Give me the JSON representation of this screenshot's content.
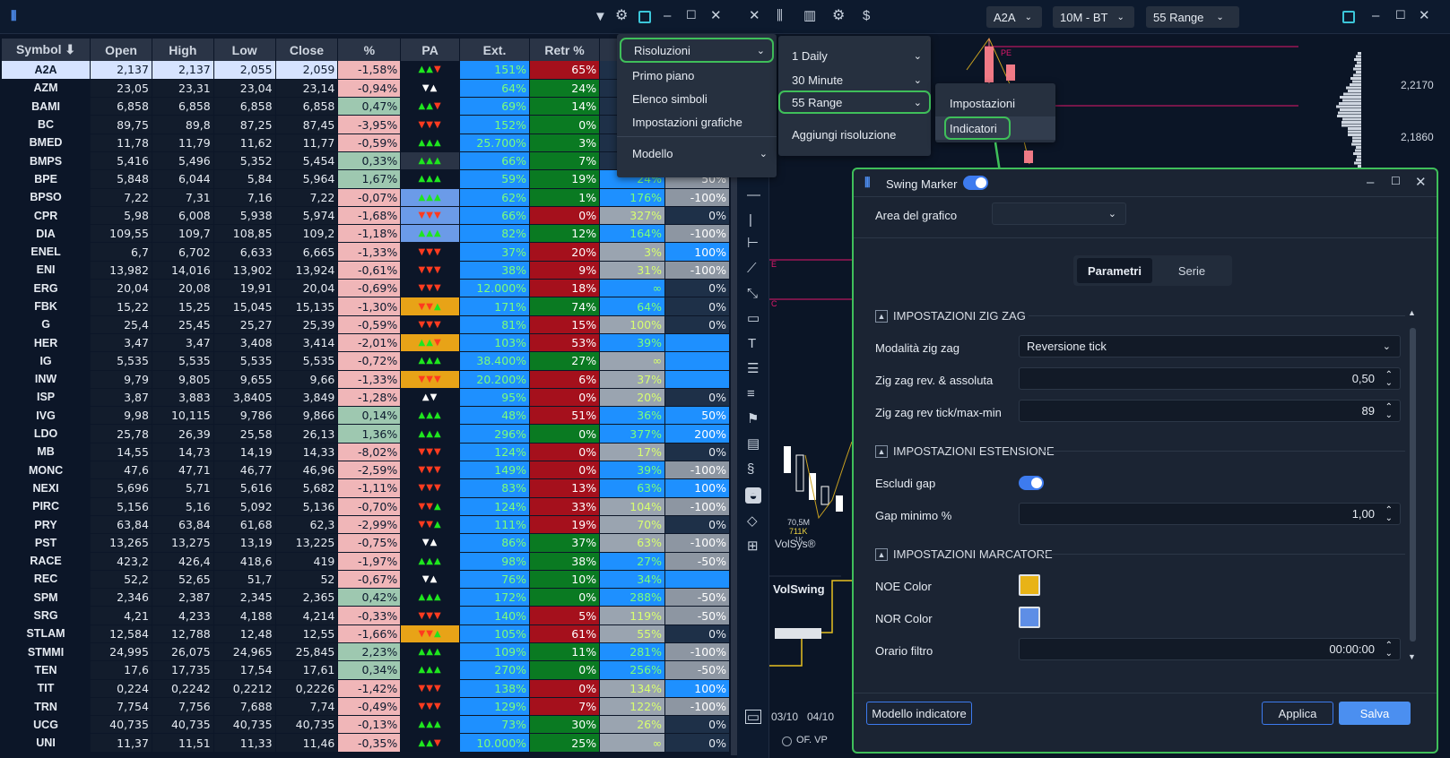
{
  "table": {
    "headers": [
      "Symbol ⬇",
      "Open",
      "High",
      "Low",
      "Close",
      "%",
      "PA",
      "Ext.",
      "Retr %",
      "",
      ""
    ],
    "rows": [
      {
        "sym": "A2A",
        "open": "2,137",
        "high": "2,137",
        "low": "2,055",
        "close": "2,059",
        "pct": "-1,58%",
        "pa": "▲▲▼",
        "pac": [
          "up",
          "up",
          "up"
        ],
        "ext": "151%",
        "retr": "65%",
        "retc": "retr",
        "c9": "",
        "c9c": "",
        "c10": "",
        "c10c": ""
      },
      {
        "sym": "AZM",
        "open": "23,05",
        "high": "23,31",
        "low": "23,04",
        "close": "23,14",
        "pct": "-0,94%",
        "pa": "▼▲",
        "pac": [
          "wh",
          "wh"
        ],
        "ext": "64%",
        "retr": "24%",
        "retc": "retg",
        "c9": "",
        "c9c": "",
        "c10": "",
        "c10c": ""
      },
      {
        "sym": "BAMI",
        "open": "6,858",
        "high": "6,858",
        "low": "6,858",
        "close": "6,858",
        "pct": "0,47%",
        "pa": "▲▲▼",
        "pac": [
          "up",
          "up",
          "up"
        ],
        "ext": "69%",
        "retr": "14%",
        "retc": "retg",
        "c9": "",
        "c9c": "",
        "c10": "",
        "c10c": ""
      },
      {
        "sym": "BC",
        "open": "89,75",
        "high": "89,8",
        "low": "87,25",
        "close": "87,45",
        "pct": "-3,95%",
        "pa": "▼▼▼",
        "pac": [
          "dn",
          "dn",
          "dn"
        ],
        "ext": "152%",
        "retr": "0%",
        "retc": "retg",
        "c9": "",
        "c9c": "",
        "c10": "",
        "c10c": ""
      },
      {
        "sym": "BMED",
        "open": "11,78",
        "high": "11,79",
        "low": "11,62",
        "close": "11,77",
        "pct": "-0,59%",
        "pa": "▲▲▲",
        "pac": [
          "up",
          "up",
          "up"
        ],
        "ext": "25.700%",
        "retr": "3%",
        "retc": "retg",
        "c9": "",
        "c9c": "",
        "c10": "",
        "c10c": ""
      },
      {
        "sym": "BMPS",
        "open": "5,416",
        "high": "5,496",
        "low": "5,352",
        "close": "5,454",
        "pct": "0,33%",
        "pa": "▲▲▲",
        "pac": [
          "up",
          "up",
          "up"
        ],
        "ext": "66%",
        "retr": "7%",
        "retc": "retg",
        "c9": "",
        "c9c": "",
        "c10": "",
        "c10c": ""
      },
      {
        "sym": "BPE",
        "open": "5,848",
        "high": "6,044",
        "low": "5,84",
        "close": "5,964",
        "pct": "1,67%",
        "pa": "▲▲▲",
        "pac": [
          "up",
          "up",
          "up"
        ],
        "ext": "59%",
        "retr": "19%",
        "retc": "retg",
        "c9": "24%",
        "c9c": "c9b",
        "c10": "50%",
        "c10c": "c10g"
      },
      {
        "sym": "BPSO",
        "open": "7,22",
        "high": "7,31",
        "low": "7,16",
        "close": "7,22",
        "pct": "-0,07%",
        "pa": "▲▲▲",
        "pac": [
          "up",
          "up",
          "up"
        ],
        "ext": "62%",
        "retr": "1%",
        "retc": "retg",
        "c9": "176%",
        "c9c": "c9b",
        "c10": "-100%",
        "c10c": "c10g"
      },
      {
        "sym": "CPR",
        "open": "5,98",
        "high": "6,008",
        "low": "5,938",
        "close": "5,974",
        "pct": "-1,68%",
        "pa": "▼▼▼",
        "pac": [
          "dn",
          "dn",
          "dn"
        ],
        "ext": "66%",
        "retr": "0%",
        "retc": "retr",
        "c9": "327%",
        "c9c": "c9g",
        "c10": "0%",
        "c10c": "c10d"
      },
      {
        "sym": "DIA",
        "open": "109,55",
        "high": "109,7",
        "low": "108,85",
        "close": "109,2",
        "pct": "-1,18%",
        "pa": "▲▲▲",
        "pac": [
          "up",
          "up",
          "up"
        ],
        "ext": "82%",
        "retr": "12%",
        "retc": "retg",
        "c9": "164%",
        "c9c": "c9b",
        "c10": "-100%",
        "c10c": "c10g"
      },
      {
        "sym": "ENEL",
        "open": "6,7",
        "high": "6,702",
        "low": "6,633",
        "close": "6,665",
        "pct": "-1,33%",
        "pa": "▼▼▼",
        "pac": [
          "dn",
          "dn",
          "dn"
        ],
        "ext": "37%",
        "retr": "20%",
        "retc": "retr",
        "c9": "3%",
        "c9c": "c9g",
        "c10": "100%",
        "c10c": "c10b"
      },
      {
        "sym": "ENI",
        "open": "13,982",
        "high": "14,016",
        "low": "13,902",
        "close": "13,924",
        "pct": "-0,61%",
        "pa": "▼▼▼",
        "pac": [
          "dn",
          "dn",
          "dn"
        ],
        "ext": "38%",
        "retr": "9%",
        "retc": "retr",
        "c9": "31%",
        "c9c": "c9g",
        "c10": "-100%",
        "c10c": "c10g"
      },
      {
        "sym": "ERG",
        "open": "20,04",
        "high": "20,08",
        "low": "19,91",
        "close": "20,04",
        "pct": "-0,69%",
        "pa": "▼▼▼",
        "pac": [
          "dn",
          "dn",
          "dn"
        ],
        "ext": "12.000%",
        "retr": "18%",
        "retc": "retr",
        "c9": "∞",
        "c9c": "c9b",
        "c10": "0%",
        "c10c": "c10d"
      },
      {
        "sym": "FBK",
        "open": "15,22",
        "high": "15,25",
        "low": "15,045",
        "close": "15,135",
        "pct": "-1,30%",
        "pa": "▼▼▲",
        "pac": [
          "dn",
          "dn",
          "dn"
        ],
        "ext": "171%",
        "retr": "74%",
        "retc": "retg",
        "c9": "64%",
        "c9c": "c9b",
        "c10": "0%",
        "c10c": "c10d"
      },
      {
        "sym": "G",
        "open": "25,4",
        "high": "25,45",
        "low": "25,27",
        "close": "25,39",
        "pct": "-0,59%",
        "pa": "▼▼▼",
        "pac": [
          "dn",
          "dn",
          "dn"
        ],
        "ext": "81%",
        "retr": "15%",
        "retc": "retr",
        "c9": "100%",
        "c9c": "c9g",
        "c10": "0%",
        "c10c": "c10d"
      },
      {
        "sym": "HER",
        "open": "3,47",
        "high": "3,47",
        "low": "3,408",
        "close": "3,414",
        "pct": "-2,01%",
        "pa": "▲▲▼",
        "pac": [
          "up",
          "up",
          "up"
        ],
        "ext": "103%",
        "retr": "53%",
        "retc": "retr",
        "c9": "39%",
        "c9c": "c9b",
        "c10": "",
        "c10c": "c10b"
      },
      {
        "sym": "IG",
        "open": "5,535",
        "high": "5,535",
        "low": "5,535",
        "close": "5,535",
        "pct": "-0,72%",
        "pa": "▲▲▲",
        "pac": [
          "up",
          "up",
          "up"
        ],
        "ext": "38.400%",
        "retr": "27%",
        "retc": "retg",
        "c9": "∞",
        "c9c": "c9g",
        "c10": "",
        "c10c": "c10b"
      },
      {
        "sym": "INW",
        "open": "9,79",
        "high": "9,805",
        "low": "9,655",
        "close": "9,66",
        "pct": "-1,33%",
        "pa": "▼▼▼",
        "pac": [
          "dn",
          "dn",
          "dn"
        ],
        "ext": "20.200%",
        "retr": "6%",
        "retc": "retr",
        "c9": "37%",
        "c9c": "c9g",
        "c10": "",
        "c10c": "c10b"
      },
      {
        "sym": "ISP",
        "open": "3,87",
        "high": "3,883",
        "low": "3,8405",
        "close": "3,849",
        "pct": "-1,28%",
        "pa": "▲▼",
        "pac": [
          "wh",
          "wh"
        ],
        "ext": "95%",
        "retr": "0%",
        "retc": "retr",
        "c9": "20%",
        "c9c": "c9g",
        "c10": "0%",
        "c10c": "c10d"
      },
      {
        "sym": "IVG",
        "open": "9,98",
        "high": "10,115",
        "low": "9,786",
        "close": "9,866",
        "pct": "0,14%",
        "pa": "▲▲▲",
        "pac": [
          "up",
          "up",
          "up"
        ],
        "ext": "48%",
        "retr": "51%",
        "retc": "retr",
        "c9": "36%",
        "c9c": "c9b",
        "c10": "50%",
        "c10c": "c10b"
      },
      {
        "sym": "LDO",
        "open": "25,78",
        "high": "26,39",
        "low": "25,58",
        "close": "26,13",
        "pct": "1,36%",
        "pa": "▲▲▲",
        "pac": [
          "up",
          "up",
          "up"
        ],
        "ext": "296%",
        "retr": "0%",
        "retc": "retg",
        "c9": "377%",
        "c9c": "c9b",
        "c10": "200%",
        "c10c": "c10b"
      },
      {
        "sym": "MB",
        "open": "14,55",
        "high": "14,73",
        "low": "14,19",
        "close": "14,33",
        "pct": "-8,02%",
        "pa": "▼▼▼",
        "pac": [
          "dn",
          "dn",
          "dn"
        ],
        "ext": "124%",
        "retr": "0%",
        "retc": "retr",
        "c9": "17%",
        "c9c": "c9g",
        "c10": "0%",
        "c10c": "c10d"
      },
      {
        "sym": "MONC",
        "open": "47,6",
        "high": "47,71",
        "low": "46,77",
        "close": "46,96",
        "pct": "-2,59%",
        "pa": "▼▼▼",
        "pac": [
          "dn",
          "dn",
          "dn"
        ],
        "ext": "149%",
        "retr": "0%",
        "retc": "retr",
        "c9": "39%",
        "c9c": "c9b",
        "c10": "-100%",
        "c10c": "c10g"
      },
      {
        "sym": "NEXI",
        "open": "5,696",
        "high": "5,71",
        "low": "5,616",
        "close": "5,682",
        "pct": "-1,11%",
        "pa": "▼▼▼",
        "pac": [
          "dn",
          "dn",
          "dn"
        ],
        "ext": "83%",
        "retr": "13%",
        "retc": "retr",
        "c9": "63%",
        "c9c": "c9b",
        "c10": "100%",
        "c10c": "c10b"
      },
      {
        "sym": "PIRC",
        "open": "5,156",
        "high": "5,16",
        "low": "5,092",
        "close": "5,136",
        "pct": "-0,70%",
        "pa": "▼▼▲",
        "pac": [
          "dn",
          "dn",
          "dn"
        ],
        "ext": "124%",
        "retr": "33%",
        "retc": "retr",
        "c9": "104%",
        "c9c": "c9g",
        "c10": "-100%",
        "c10c": "c10g"
      },
      {
        "sym": "PRY",
        "open": "63,84",
        "high": "63,84",
        "low": "61,68",
        "close": "62,3",
        "pct": "-2,99%",
        "pa": "▼▼▲",
        "pac": [
          "dn",
          "dn",
          "dn"
        ],
        "ext": "111%",
        "retr": "19%",
        "retc": "retr",
        "c9": "70%",
        "c9c": "c9g",
        "c10": "0%",
        "c10c": "c10d"
      },
      {
        "sym": "PST",
        "open": "13,265",
        "high": "13,275",
        "low": "13,19",
        "close": "13,225",
        "pct": "-0,75%",
        "pa": "▼▲",
        "pac": [
          "wh",
          "wh"
        ],
        "ext": "86%",
        "retr": "37%",
        "retc": "retg",
        "c9": "63%",
        "c9c": "c9g",
        "c10": "-100%",
        "c10c": "c10g"
      },
      {
        "sym": "RACE",
        "open": "423,2",
        "high": "426,4",
        "low": "418,6",
        "close": "419",
        "pct": "-1,97%",
        "pa": "▲▲▲",
        "pac": [
          "up",
          "up",
          "up"
        ],
        "ext": "98%",
        "retr": "38%",
        "retc": "retg",
        "c9": "27%",
        "c9c": "c9b",
        "c10": "-50%",
        "c10c": "c10g"
      },
      {
        "sym": "REC",
        "open": "52,2",
        "high": "52,65",
        "low": "51,7",
        "close": "52",
        "pct": "-0,67%",
        "pa": "▼▲",
        "pac": [
          "wh",
          "wh"
        ],
        "ext": "76%",
        "retr": "10%",
        "retc": "retg",
        "c9": "34%",
        "c9c": "c9b",
        "c10": "",
        "c10c": "c10b"
      },
      {
        "sym": "SPM",
        "open": "2,346",
        "high": "2,387",
        "low": "2,345",
        "close": "2,365",
        "pct": "0,42%",
        "pa": "▲▲▲",
        "pac": [
          "up",
          "up",
          "up"
        ],
        "ext": "172%",
        "retr": "0%",
        "retc": "retg",
        "c9": "288%",
        "c9c": "c9b",
        "c10": "-50%",
        "c10c": "c10g"
      },
      {
        "sym": "SRG",
        "open": "4,21",
        "high": "4,233",
        "low": "4,188",
        "close": "4,214",
        "pct": "-0,33%",
        "pa": "▼▼▼",
        "pac": [
          "dn",
          "dn",
          "dn"
        ],
        "ext": "140%",
        "retr": "5%",
        "retc": "retr",
        "c9": "119%",
        "c9c": "c9g",
        "c10": "-50%",
        "c10c": "c10g"
      },
      {
        "sym": "STLAM",
        "open": "12,584",
        "high": "12,788",
        "low": "12,48",
        "close": "12,55",
        "pct": "-1,66%",
        "pa": "▼▼▲",
        "pac": [
          "dn",
          "dn",
          "dn"
        ],
        "ext": "105%",
        "retr": "61%",
        "retc": "retr",
        "c9": "55%",
        "c9c": "c9g",
        "c10": "0%",
        "c10c": "c10d"
      },
      {
        "sym": "STMMI",
        "open": "24,995",
        "high": "26,075",
        "low": "24,965",
        "close": "25,845",
        "pct": "2,23%",
        "pa": "▲▲▲",
        "pac": [
          "up",
          "up",
          "up"
        ],
        "ext": "109%",
        "retr": "11%",
        "retc": "retg",
        "c9": "281%",
        "c9c": "c9b",
        "c10": "-100%",
        "c10c": "c10g"
      },
      {
        "sym": "TEN",
        "open": "17,6",
        "high": "17,735",
        "low": "17,54",
        "close": "17,61",
        "pct": "0,34%",
        "pa": "▲▲▲",
        "pac": [
          "up",
          "up",
          "up"
        ],
        "ext": "270%",
        "retr": "0%",
        "retc": "retg",
        "c9": "256%",
        "c9c": "c9b",
        "c10": "-50%",
        "c10c": "c10g"
      },
      {
        "sym": "TIT",
        "open": "0,224",
        "high": "0,2242",
        "low": "0,2212",
        "close": "0,2226",
        "pct": "-1,42%",
        "pa": "▼▼▼",
        "pac": [
          "dn",
          "dn",
          "dn"
        ],
        "ext": "138%",
        "retr": "0%",
        "retc": "retr",
        "c9": "134%",
        "c9c": "c9g",
        "c10": "100%",
        "c10c": "c10b"
      },
      {
        "sym": "TRN",
        "open": "7,754",
        "high": "7,756",
        "low": "7,688",
        "close": "7,74",
        "pct": "-0,49%",
        "pa": "▼▼▼",
        "pac": [
          "dn",
          "dn",
          "dn"
        ],
        "ext": "129%",
        "retr": "7%",
        "retc": "retr",
        "c9": "122%",
        "c9c": "c9g",
        "c10": "-100%",
        "c10c": "c10g"
      },
      {
        "sym": "UCG",
        "open": "40,735",
        "high": "40,735",
        "low": "40,735",
        "close": "40,735",
        "pct": "-0,13%",
        "pa": "▲▲▲",
        "pac": [
          "up",
          "up",
          "up"
        ],
        "ext": "73%",
        "retr": "30%",
        "retc": "retg",
        "c9": "26%",
        "c9c": "c9g",
        "c10": "0%",
        "c10c": "c10d"
      },
      {
        "sym": "UNI",
        "open": "11,37",
        "high": "11,51",
        "low": "11,33",
        "close": "11,46",
        "pct": "-0,35%",
        "pa": "▲▲▼",
        "pac": [
          "up",
          "up",
          "up"
        ],
        "ext": "10.000%",
        "retr": "25%",
        "retc": "retg",
        "c9": "∞",
        "c9c": "c9g",
        "c10": "0%",
        "c10c": "c10d"
      }
    ]
  },
  "menu1": {
    "items": [
      "Risoluzioni",
      "Primo piano",
      "Elenco simboli",
      "Impostazioni grafiche",
      "Modello"
    ]
  },
  "menu2": {
    "items": [
      "1 Daily",
      "30 Minute",
      "55 Range",
      "Aggiungi risoluzione"
    ]
  },
  "menu3": {
    "items": [
      "Impostazioni",
      "Indicatori"
    ]
  },
  "chart_toolbar": {
    "symbol": "A2A",
    "timeframe": "10M - BT",
    "range": "55 Range"
  },
  "chart": {
    "price1": "2,2170",
    "price2": "2,1860",
    "pe_label": "PE",
    "e_label": "E",
    "c_label": "C",
    "vol1": "70,5M",
    "vol2": "711K",
    "vol3": "1K",
    "volsys": "VolSys®",
    "volswing": "VolSwing",
    "date1": "03/10",
    "date2": "04/10",
    "radio_label": "OF. VP"
  },
  "dialog": {
    "title": "Swing Marker",
    "area_label": "Area del grafico",
    "area_value": "",
    "tabs": [
      "Parametri",
      "Serie"
    ],
    "sec1": "IMPOSTAZIONI ZIG ZAG",
    "zz_mode_label": "Modalità zig zag",
    "zz_mode_value": "Reversione tick",
    "zz_rev_label": "Zig zag rev. & assoluta",
    "zz_rev_value": "0,50",
    "zz_tick_label": "Zig zag rev tick/max-min",
    "zz_tick_value": "89",
    "sec2": "IMPOSTAZIONI ESTENSIONE",
    "gap_label": "Escludi gap",
    "gapmin_label": "Gap minimo %",
    "gapmin_value": "1,00",
    "sec3": "IMPOSTAZIONI MARCATORE",
    "noe_label": "NOE Color",
    "noe_color": "#e8b317",
    "nor_label": "NOR Color",
    "nor_color": "#5e8ee6",
    "time_label": "Orario filtro",
    "time_value": "00:00:00",
    "model_btn": "Modello indicatore",
    "apply_btn": "Applica",
    "save_btn": "Salva"
  }
}
